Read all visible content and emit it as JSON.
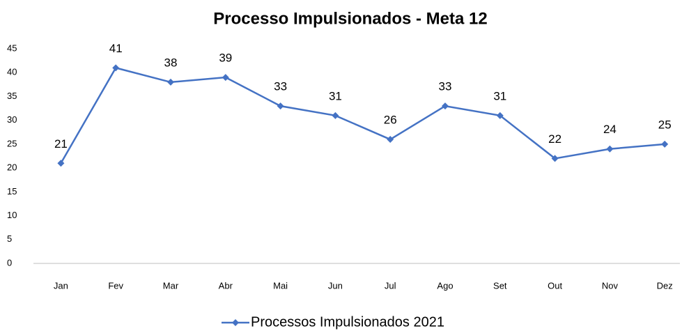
{
  "chart_data": {
    "type": "line",
    "title": "Processo Impulsionados - Meta 12",
    "categories": [
      "Jan",
      "Fev",
      "Mar",
      "Abr",
      "Mai",
      "Jun",
      "Jul",
      "Ago",
      "Set",
      "Out",
      "Nov",
      "Dez"
    ],
    "series": [
      {
        "name": "Processos Impulsionados 2021",
        "color": "#4472c4",
        "values": [
          21,
          41,
          38,
          39,
          33,
          31,
          26,
          33,
          31,
          22,
          24,
          25
        ]
      }
    ],
    "ylim": [
      0,
      45
    ],
    "yticks": [
      0,
      5,
      10,
      15,
      20,
      25,
      30,
      35,
      40,
      45
    ],
    "grid": false,
    "legend": "bottom"
  }
}
